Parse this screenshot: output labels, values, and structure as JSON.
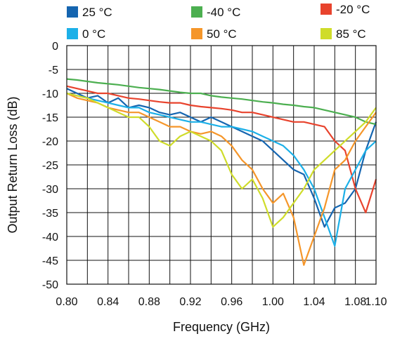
{
  "chart_data": {
    "type": "line",
    "xlabel": "Frequency (GHz)",
    "ylabel": "Output Return Loss (dB)",
    "xlim": [
      0.8,
      1.1
    ],
    "ylim": [
      -50,
      0
    ],
    "x_ticks": [
      "0.80",
      "0.84",
      "0.88",
      "0.92",
      "0.96",
      "1.00",
      "1.04",
      "1.08",
      "1.10"
    ],
    "x_tick_values": [
      0.8,
      0.84,
      0.88,
      0.92,
      0.96,
      1.0,
      1.04,
      1.08,
      1.1
    ],
    "x_grid_step": 0.02,
    "y_ticks": [
      "0",
      "-5",
      "-10",
      "-15",
      "-20",
      "-25",
      "-30",
      "-35",
      "-40",
      "-45",
      "-50"
    ],
    "y_tick_values": [
      0,
      -5,
      -10,
      -15,
      -20,
      -25,
      -30,
      -35,
      -40,
      -45,
      -50
    ],
    "grid": true,
    "legend_position": "top",
    "series": [
      {
        "name": "25 °C",
        "color": "#1565b0",
        "x": [
          0.8,
          0.81,
          0.82,
          0.83,
          0.84,
          0.85,
          0.86,
          0.87,
          0.88,
          0.89,
          0.9,
          0.91,
          0.92,
          0.93,
          0.94,
          0.95,
          0.96,
          0.97,
          0.98,
          0.99,
          1.0,
          1.01,
          1.02,
          1.03,
          1.04,
          1.05,
          1.06,
          1.07,
          1.08,
          1.09,
          1.1
        ],
        "y": [
          -9,
          -10,
          -11,
          -10.5,
          -12,
          -11,
          -13,
          -12.5,
          -13,
          -14,
          -14.5,
          -14,
          -15,
          -16,
          -15,
          -16,
          -17,
          -18,
          -19,
          -20,
          -22,
          -24,
          -26,
          -27,
          -32,
          -38,
          -34,
          -33,
          -30,
          -22,
          -16
        ]
      },
      {
        "name": "-40 °C",
        "color": "#4caf50",
        "x": [
          0.8,
          0.81,
          0.82,
          0.83,
          0.84,
          0.85,
          0.86,
          0.87,
          0.88,
          0.89,
          0.9,
          0.91,
          0.92,
          0.93,
          0.94,
          0.95,
          0.96,
          0.97,
          0.98,
          0.99,
          1.0,
          1.01,
          1.02,
          1.03,
          1.04,
          1.05,
          1.06,
          1.07,
          1.08,
          1.09,
          1.1
        ],
        "y": [
          -7,
          -7.2,
          -7.5,
          -7.8,
          -8,
          -8.2,
          -8.5,
          -8.8,
          -9,
          -9.2,
          -9.5,
          -9.8,
          -10,
          -10,
          -10.5,
          -10.8,
          -11,
          -11.2,
          -11.5,
          -11.8,
          -12,
          -12.3,
          -12.5,
          -12.8,
          -13,
          -13.5,
          -14,
          -14.5,
          -15,
          -16,
          -16.5
        ]
      },
      {
        "name": "-20 °C",
        "color": "#e8432d",
        "x": [
          0.8,
          0.81,
          0.82,
          0.83,
          0.84,
          0.85,
          0.86,
          0.87,
          0.88,
          0.89,
          0.9,
          0.91,
          0.92,
          0.93,
          0.94,
          0.95,
          0.96,
          0.97,
          0.98,
          0.99,
          1.0,
          1.01,
          1.02,
          1.03,
          1.04,
          1.05,
          1.06,
          1.07,
          1.08,
          1.09,
          1.1
        ],
        "y": [
          -8.5,
          -9,
          -9.5,
          -10,
          -10,
          -10.5,
          -11,
          -11.2,
          -11.5,
          -11.8,
          -12,
          -12,
          -12.5,
          -12.8,
          -13,
          -13.2,
          -13.5,
          -14,
          -14,
          -14.5,
          -15,
          -15.5,
          -16,
          -16,
          -16.5,
          -17,
          -20,
          -22,
          -30,
          -35,
          -28
        ]
      },
      {
        "name": "0 °C",
        "color": "#1cb0e8",
        "x": [
          0.8,
          0.81,
          0.82,
          0.83,
          0.84,
          0.85,
          0.86,
          0.87,
          0.88,
          0.89,
          0.9,
          0.91,
          0.92,
          0.93,
          0.94,
          0.95,
          0.96,
          0.97,
          0.98,
          0.99,
          1.0,
          1.01,
          1.02,
          1.03,
          1.04,
          1.05,
          1.06,
          1.07,
          1.08,
          1.09,
          1.1
        ],
        "y": [
          -10,
          -10.5,
          -11,
          -11.5,
          -12,
          -12.5,
          -13,
          -13,
          -14,
          -14.5,
          -15,
          -15.5,
          -16,
          -16,
          -16.5,
          -17,
          -17,
          -17.5,
          -18,
          -19,
          -20,
          -21,
          -23,
          -26,
          -30,
          -36,
          -42,
          -30,
          -26,
          -22,
          -20
        ]
      },
      {
        "name": "50 °C",
        "color": "#f5962a",
        "x": [
          0.8,
          0.81,
          0.82,
          0.83,
          0.84,
          0.85,
          0.86,
          0.87,
          0.88,
          0.89,
          0.9,
          0.91,
          0.92,
          0.93,
          0.94,
          0.95,
          0.96,
          0.97,
          0.98,
          0.99,
          1.0,
          1.01,
          1.02,
          1.03,
          1.04,
          1.05,
          1.06,
          1.07,
          1.08,
          1.09,
          1.1
        ],
        "y": [
          -10,
          -11,
          -11.5,
          -12,
          -13,
          -13.5,
          -14,
          -14,
          -15,
          -16,
          -17,
          -17,
          -18,
          -18.5,
          -18,
          -19,
          -21,
          -24,
          -26,
          -30,
          -33,
          -31,
          -36,
          -46,
          -40,
          -34,
          -26,
          -24,
          -20,
          -17,
          -14
        ]
      },
      {
        "name": "85 °C",
        "color": "#cfdc2a",
        "x": [
          0.8,
          0.81,
          0.82,
          0.83,
          0.84,
          0.85,
          0.86,
          0.87,
          0.88,
          0.89,
          0.9,
          0.91,
          0.92,
          0.93,
          0.94,
          0.95,
          0.96,
          0.97,
          0.98,
          0.99,
          1.0,
          1.01,
          1.02,
          1.03,
          1.04,
          1.05,
          1.06,
          1.07,
          1.08,
          1.09,
          1.1
        ],
        "y": [
          -10,
          -10.5,
          -11,
          -12,
          -13,
          -14,
          -15,
          -15,
          -17,
          -20,
          -21,
          -19,
          -18,
          -19,
          -20,
          -22,
          -27,
          -30,
          -28,
          -32,
          -38,
          -36,
          -33,
          -30,
          -26,
          -24,
          -22,
          -20,
          -18,
          -16,
          -13
        ]
      }
    ]
  }
}
